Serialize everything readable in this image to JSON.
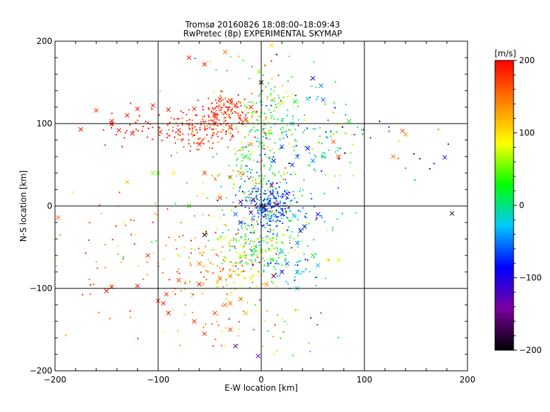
{
  "chart_data": {
    "type": "scatter",
    "title": "Tromsø 20160826 18:08:00–18:09:43",
    "subtitle": "RwPretec (8p) EXPERIMENTAL SKYMAP",
    "xlabel": "E-W location [km]",
    "ylabel": "N-S location [km]",
    "xlim": [
      -200,
      200
    ],
    "ylim": [
      -200,
      200
    ],
    "xticks": [
      "−200",
      "−100",
      "0",
      "100",
      "200"
    ],
    "yticks": [
      "200",
      "100",
      "0",
      "−100",
      "−200"
    ],
    "grid_lines": [
      -100,
      0,
      100
    ],
    "colorbar": {
      "label": "[m/s]",
      "range": [
        -200,
        200
      ],
      "ticks": [
        "200",
        "100",
        "0",
        "−100",
        "−200"
      ],
      "colors": [
        "#000000",
        "#7a00a0",
        "#0000ff",
        "#00c8ff",
        "#00ff00",
        "#ffff00",
        "#ff8000",
        "#ff0000"
      ]
    },
    "clusters": [
      {
        "x": -35,
        "y": 115,
        "sx": 14,
        "sy": 12,
        "n": 130,
        "v": 185,
        "vs": 20
      },
      {
        "x": -55,
        "y": 88,
        "sx": 18,
        "sy": 12,
        "n": 120,
        "v": 175,
        "vs": 25
      },
      {
        "x": -110,
        "y": 95,
        "sx": 28,
        "sy": 12,
        "n": 45,
        "v": 195,
        "vs": 10
      },
      {
        "x": 5,
        "y": 110,
        "sx": 18,
        "sy": 20,
        "n": 110,
        "v": 40,
        "vs": 45
      },
      {
        "x": 0,
        "y": 60,
        "sx": 15,
        "sy": 30,
        "n": 120,
        "v": 30,
        "vs": 45
      },
      {
        "x": 45,
        "y": 80,
        "sx": 30,
        "sy": 25,
        "n": 90,
        "v": -20,
        "vs": 50
      },
      {
        "x": 100,
        "y": 75,
        "sx": 40,
        "sy": 20,
        "n": 35,
        "v": -60,
        "vs": 90
      },
      {
        "x": 5,
        "y": 0,
        "sx": 12,
        "sy": 15,
        "n": 220,
        "v": -70,
        "vs": 35
      },
      {
        "x": 30,
        "y": -10,
        "sx": 22,
        "sy": 15,
        "n": 70,
        "v": -30,
        "vs": 45
      },
      {
        "x": 0,
        "y": -45,
        "sx": 22,
        "sy": 20,
        "n": 180,
        "v": 40,
        "vs": 45
      },
      {
        "x": -40,
        "y": -80,
        "sx": 25,
        "sy": 20,
        "n": 120,
        "v": 120,
        "vs": 35
      },
      {
        "x": 20,
        "y": -75,
        "sx": 20,
        "sy": 15,
        "n": 60,
        "v": -20,
        "vs": 45
      },
      {
        "x": -80,
        "y": -30,
        "sx": 40,
        "sy": 40,
        "n": 60,
        "v": 130,
        "vs": 50
      },
      {
        "x": -130,
        "y": -80,
        "sx": 45,
        "sy": 40,
        "n": 40,
        "v": 170,
        "vs": 30
      },
      {
        "x": -40,
        "y": -140,
        "sx": 30,
        "sy": 25,
        "n": 35,
        "v": 130,
        "vs": 40
      },
      {
        "x": 0,
        "y": 160,
        "sx": 40,
        "sy": 20,
        "n": 35,
        "v": 40,
        "vs": 70
      },
      {
        "x": 20,
        "y": -150,
        "sx": 25,
        "sy": 25,
        "n": 20,
        "v": 40,
        "vs": 60
      },
      {
        "x": -10,
        "y": 30,
        "sx": 25,
        "sy": 20,
        "n": 60,
        "v": 60,
        "vs": 50
      }
    ],
    "crosses": [
      [
        -70,
        180,
        190
      ],
      [
        -35,
        187,
        150
      ],
      [
        -55,
        172,
        200
      ],
      [
        -160,
        116,
        190
      ],
      [
        -120,
        118,
        195
      ],
      [
        -90,
        117,
        195
      ],
      [
        -175,
        93,
        200
      ],
      [
        -145,
        103,
        195
      ],
      [
        -138,
        92,
        190
      ],
      [
        -125,
        88,
        195
      ],
      [
        -145,
        100,
        195
      ],
      [
        -130,
        110,
        190
      ],
      [
        -98,
        90,
        180
      ],
      [
        -80,
        92,
        185
      ],
      [
        -105,
        122,
        190
      ],
      [
        -40,
        130,
        185
      ],
      [
        -30,
        128,
        190
      ],
      [
        -25,
        122,
        200
      ],
      [
        -10,
        120,
        200
      ],
      [
        -45,
        110,
        190
      ],
      [
        -65,
        118,
        185
      ],
      [
        -15,
        105,
        190
      ],
      [
        -30,
        95,
        185
      ],
      [
        -45,
        100,
        170
      ],
      [
        -60,
        75,
        185
      ],
      [
        -10,
        75,
        150
      ],
      [
        0,
        150,
        -200
      ],
      [
        50,
        155,
        -100
      ],
      [
        58,
        146,
        -50
      ],
      [
        60,
        129,
        -60
      ],
      [
        45,
        130,
        -10
      ],
      [
        33,
        127,
        30
      ],
      [
        20,
        125,
        70
      ],
      [
        -2,
        163,
        60
      ],
      [
        10,
        195,
        100
      ],
      [
        85,
        103,
        30
      ],
      [
        70,
        78,
        160
      ],
      [
        140,
        87,
        130
      ],
      [
        137,
        91,
        170
      ],
      [
        128,
        60,
        150
      ],
      [
        178,
        59,
        -100
      ],
      [
        185,
        -9,
        -200
      ],
      [
        30,
        100,
        -20
      ],
      [
        20,
        72,
        -60
      ],
      [
        12,
        55,
        -80
      ],
      [
        -15,
        60,
        30
      ],
      [
        -30,
        35,
        150
      ],
      [
        -40,
        10,
        180
      ],
      [
        -70,
        0,
        40
      ],
      [
        -100,
        40,
        50
      ],
      [
        -130,
        29,
        120
      ],
      [
        -197,
        -14,
        160
      ],
      [
        -55,
        -35,
        -200
      ],
      [
        -20,
        -20,
        -110
      ],
      [
        10,
        25,
        -150
      ],
      [
        0,
        0,
        -200
      ],
      [
        -10,
        -8,
        -130
      ],
      [
        15,
        2,
        -150
      ],
      [
        -25,
        -10,
        -60
      ],
      [
        20,
        -10,
        -80
      ],
      [
        32,
        -12,
        -30
      ],
      [
        55,
        -10,
        -100
      ],
      [
        38,
        -30,
        -100
      ],
      [
        42,
        -25,
        -80
      ],
      [
        35,
        -45,
        -50
      ],
      [
        20,
        -55,
        -30
      ],
      [
        10,
        -65,
        30
      ],
      [
        25,
        -70,
        -60
      ],
      [
        20,
        -80,
        -110
      ],
      [
        12,
        -85,
        -150
      ],
      [
        5,
        -95,
        140
      ],
      [
        -10,
        -88,
        90
      ],
      [
        -30,
        -85,
        140
      ],
      [
        -40,
        -88,
        160
      ],
      [
        -60,
        -70,
        150
      ],
      [
        -60,
        -95,
        200
      ],
      [
        -80,
        -90,
        170
      ],
      [
        -92,
        -107,
        180
      ],
      [
        -95,
        -118,
        190
      ],
      [
        -120,
        -97,
        190
      ],
      [
        -150,
        -103,
        200
      ],
      [
        -145,
        -98,
        190
      ],
      [
        -65,
        -140,
        185
      ],
      [
        -45,
        -130,
        170
      ],
      [
        -20,
        -113,
        150
      ],
      [
        -35,
        -120,
        150
      ],
      [
        -25,
        -170,
        -130
      ],
      [
        -3,
        -182,
        -130
      ],
      [
        -15,
        -130,
        120
      ],
      [
        35,
        -100,
        -10
      ],
      [
        50,
        -60,
        40
      ],
      [
        65,
        -65,
        90
      ],
      [
        55,
        -72,
        -20
      ],
      [
        75,
        -65,
        80
      ],
      [
        35,
        -80,
        -40
      ],
      [
        0,
        -55,
        60
      ],
      [
        -20,
        -60,
        70
      ],
      [
        -40,
        -40,
        90
      ],
      [
        -60,
        -70,
        140
      ],
      [
        -110,
        -60,
        180
      ],
      [
        -90,
        -130,
        190
      ],
      [
        -100,
        -115,
        180
      ],
      [
        -30,
        -150,
        170
      ],
      [
        -55,
        -155,
        180
      ],
      [
        -30,
        -118,
        150
      ],
      [
        10,
        15,
        -100
      ],
      [
        5,
        -5,
        -130
      ],
      [
        -8,
        8,
        -140
      ],
      [
        25,
        15,
        -90
      ],
      [
        -20,
        5,
        -120
      ],
      [
        30,
        50,
        -70
      ],
      [
        35,
        60,
        -50
      ],
      [
        50,
        55,
        -40
      ],
      [
        60,
        60,
        10
      ],
      [
        75,
        60,
        180
      ],
      [
        45,
        70,
        -90
      ],
      [
        -20,
        40,
        140
      ],
      [
        -55,
        40,
        170
      ],
      [
        -105,
        40,
        60
      ],
      [
        -85,
        40,
        90
      ]
    ]
  }
}
